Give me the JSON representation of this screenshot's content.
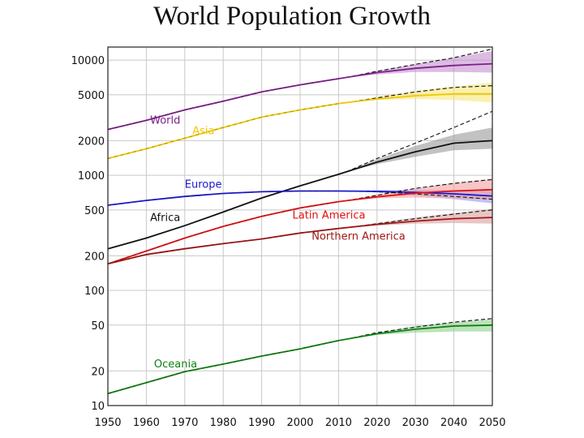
{
  "chart_data": {
    "type": "line",
    "title": "World Population Growth",
    "xlabel": "",
    "ylabel": "",
    "y_scale": "log",
    "xlim": [
      1950,
      2050
    ],
    "ylim": [
      10,
      13000
    ],
    "grid": true,
    "x_ticks": [
      "1950",
      "1960",
      "1970",
      "1980",
      "1990",
      "2000",
      "2010",
      "2020",
      "2030",
      "2040",
      "2050"
    ],
    "y_ticks": [
      {
        "value": 10000,
        "label": "10000"
      },
      {
        "value": 5000,
        "label": "5000"
      },
      {
        "value": 2000,
        "label": "2000"
      },
      {
        "value": 1000,
        "label": "1000"
      },
      {
        "value": 500,
        "label": "500"
      },
      {
        "value": 200,
        "label": "200"
      },
      {
        "value": 100,
        "label": "100"
      },
      {
        "value": 50,
        "label": "50"
      },
      {
        "value": 20,
        "label": "20"
      },
      {
        "value": 10,
        "label": "10"
      }
    ],
    "projection_start": 2012,
    "series": [
      {
        "name": "World",
        "color": "#7f1f8c",
        "band_color": "#c58fd0",
        "x": [
          1950,
          1960,
          1970,
          1980,
          1990,
          2000,
          2010,
          2020,
          2030,
          2040,
          2050
        ],
        "y": [
          2500,
          3000,
          3700,
          4400,
          5300,
          6100,
          6900,
          7800,
          8500,
          9000,
          9300
        ],
        "high": [
          null,
          null,
          null,
          null,
          null,
          null,
          null,
          8100,
          9200,
          10500,
          12000
        ],
        "low": [
          null,
          null,
          null,
          null,
          null,
          null,
          null,
          7500,
          7900,
          7900,
          7800
        ],
        "constant": [
          null,
          null,
          null,
          null,
          null,
          null,
          null,
          8000,
          9200,
          10500,
          12500
        ]
      },
      {
        "name": "Asia",
        "color": "#f0c800",
        "band_color": "#f7e77a",
        "x": [
          1950,
          1960,
          1970,
          1980,
          1990,
          2000,
          2010,
          2020,
          2030,
          2040,
          2050
        ],
        "y": [
          1400,
          1700,
          2100,
          2600,
          3200,
          3700,
          4200,
          4600,
          4900,
          5100,
          5100
        ],
        "high": [
          null,
          null,
          null,
          null,
          null,
          null,
          null,
          4800,
          5400,
          5900,
          6400
        ],
        "low": [
          null,
          null,
          null,
          null,
          null,
          null,
          null,
          4500,
          4600,
          4500,
          4300
        ],
        "constant": [
          null,
          null,
          null,
          null,
          null,
          null,
          null,
          4700,
          5300,
          5800,
          6000
        ]
      },
      {
        "name": "Africa",
        "color": "#111111",
        "band_color": "#9a9a9a",
        "x": [
          1950,
          1960,
          1970,
          1980,
          1990,
          2000,
          2010,
          2020,
          2030,
          2040,
          2050
        ],
        "y": [
          230,
          285,
          365,
          480,
          635,
          810,
          1020,
          1300,
          1600,
          1900,
          2000
        ],
        "high": [
          null,
          null,
          null,
          null,
          null,
          null,
          null,
          1380,
          1800,
          2250,
          2600
        ],
        "low": [
          null,
          null,
          null,
          null,
          null,
          null,
          null,
          1250,
          1450,
          1650,
          1700
        ],
        "constant": [
          null,
          null,
          null,
          null,
          null,
          null,
          null,
          1400,
          1900,
          2600,
          3600
        ]
      },
      {
        "name": "Europe",
        "color": "#1a1ad0",
        "band_color": "#9a9af0",
        "x": [
          1950,
          1960,
          1970,
          1980,
          1990,
          2000,
          2010,
          2020,
          2030,
          2040,
          2050
        ],
        "y": [
          550,
          605,
          655,
          695,
          720,
          730,
          730,
          725,
          710,
          690,
          660
        ],
        "high": [
          null,
          null,
          null,
          null,
          null,
          null,
          null,
          740,
          750,
          745,
          735
        ],
        "low": [
          null,
          null,
          null,
          null,
          null,
          null,
          null,
          710,
          665,
          620,
          570
        ],
        "constant": [
          null,
          null,
          null,
          null,
          null,
          null,
          null,
          720,
          690,
          655,
          620
        ]
      },
      {
        "name": "Latin America",
        "color": "#e01010",
        "band_color": "#f4a0a0",
        "x": [
          1950,
          1960,
          1970,
          1980,
          1990,
          2000,
          2010,
          2020,
          2030,
          2040,
          2050
        ],
        "y": [
          170,
          220,
          285,
          360,
          440,
          520,
          590,
          650,
          700,
          730,
          750
        ],
        "high": [
          null,
          null,
          null,
          null,
          null,
          null,
          null,
          680,
          770,
          860,
          930
        ],
        "low": [
          null,
          null,
          null,
          null,
          null,
          null,
          null,
          630,
          640,
          630,
          610
        ],
        "constant": [
          null,
          null,
          null,
          null,
          null,
          null,
          null,
          670,
          770,
          850,
          920
        ]
      },
      {
        "name": "Northern America",
        "color": "#a01818",
        "band_color": "#d9a0a0",
        "x": [
          1950,
          1960,
          1970,
          1980,
          1990,
          2000,
          2010,
          2020,
          2030,
          2040,
          2050
        ],
        "y": [
          170,
          205,
          230,
          255,
          280,
          315,
          345,
          375,
          400,
          420,
          430
        ],
        "high": [
          null,
          null,
          null,
          null,
          null,
          null,
          null,
          385,
          430,
          470,
          510
        ],
        "low": [
          null,
          null,
          null,
          null,
          null,
          null,
          null,
          365,
          380,
          385,
          380
        ],
        "constant": [
          null,
          null,
          null,
          null,
          null,
          null,
          null,
          380,
          420,
          460,
          500
        ]
      },
      {
        "name": "Oceania",
        "color": "#108010",
        "band_color": "#8fd08f",
        "x": [
          1950,
          1960,
          1970,
          1980,
          1990,
          2000,
          2010,
          2020,
          2030,
          2040,
          2050
        ],
        "y": [
          12.7,
          15.8,
          19.7,
          22.9,
          26.9,
          31.1,
          36.7,
          42,
          46,
          49,
          50
        ],
        "high": [
          null,
          null,
          null,
          null,
          null,
          null,
          null,
          43,
          49,
          53,
          56
        ],
        "low": [
          null,
          null,
          null,
          null,
          null,
          null,
          null,
          41,
          43,
          44,
          44
        ],
        "constant": [
          null,
          null,
          null,
          null,
          null,
          null,
          null,
          43,
          48,
          53,
          57
        ]
      }
    ],
    "labels": [
      {
        "text": "World",
        "color": "#7f1f8c",
        "x": 1961,
        "y": 2800
      },
      {
        "text": "Asia",
        "color": "#f0c800",
        "x": 1972,
        "y": 2270
      },
      {
        "text": "Europe",
        "color": "#1a1ad0",
        "x": 1970,
        "y": 780
      },
      {
        "text": "Africa",
        "color": "#111111",
        "x": 1961,
        "y": 400
      },
      {
        "text": "Latin America",
        "color": "#e01010",
        "x": 1998,
        "y": 420
      },
      {
        "text": "Northern America",
        "color": "#a01818",
        "x": 2003,
        "y": 275
      },
      {
        "text": "Oceania",
        "color": "#108010",
        "x": 1962,
        "y": 21.5
      }
    ]
  }
}
